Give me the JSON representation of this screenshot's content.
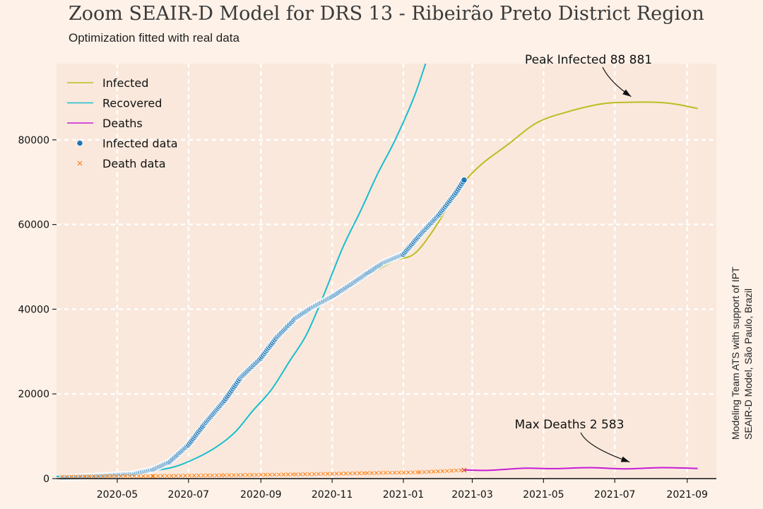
{
  "header": {
    "title": "Zoom SEAIR-D Model for DRS 13 - Ribeirão Preto District Region",
    "subtitle": "Optimization fitted with real data"
  },
  "credit": {
    "line1": "Modeling Team ATS with support of IPT",
    "line2": "SEAIR-D Model, São Paulo, Brazil"
  },
  "chart_data": {
    "type": "line",
    "title": "Zoom SEAIR-D Model for DRS 13 - Ribeirão Preto District Region",
    "subtitle": "Optimization fitted with real data",
    "xlabel": "",
    "ylabel": "",
    "xlim": [
      "2020-03-10",
      "2021-09-26"
    ],
    "ylim": [
      0,
      98000
    ],
    "grid": true,
    "legend_position": "top-left",
    "x_ticks": [
      "2020-05",
      "2020-07",
      "2020-09",
      "2020-11",
      "2021-01",
      "2021-03",
      "2021-05",
      "2021-07",
      "2021-09"
    ],
    "y_ticks": [
      0,
      20000,
      40000,
      60000,
      80000
    ],
    "series": [
      {
        "name": "Infected",
        "kind": "line",
        "color": "#bcbd22",
        "points": [
          [
            "2020-03-10",
            500
          ],
          [
            "2020-04-20",
            900
          ],
          [
            "2020-05-20",
            1800
          ],
          [
            "2020-06-10",
            3500
          ],
          [
            "2020-06-25",
            6500
          ],
          [
            "2020-07-10",
            12000
          ],
          [
            "2020-08-01",
            19000
          ],
          [
            "2020-08-25",
            27000
          ],
          [
            "2020-09-15",
            33000
          ],
          [
            "2020-10-05",
            38500
          ],
          [
            "2020-10-25",
            42000
          ],
          [
            "2020-11-15",
            45000
          ],
          [
            "2020-12-05",
            48500
          ],
          [
            "2020-12-25",
            51500
          ],
          [
            "2021-01-10",
            53000
          ],
          [
            "2021-01-25",
            58000
          ],
          [
            "2021-02-10",
            65000
          ],
          [
            "2021-02-22",
            70000
          ],
          [
            "2021-03-10",
            74500
          ],
          [
            "2021-04-01",
            79000
          ],
          [
            "2021-04-25",
            84000
          ],
          [
            "2021-05-20",
            86500
          ],
          [
            "2021-06-20",
            88500
          ],
          [
            "2021-07-15",
            88881
          ],
          [
            "2021-08-10",
            88800
          ],
          [
            "2021-08-25",
            88300
          ],
          [
            "2021-09-10",
            87400
          ]
        ]
      },
      {
        "name": "Recovered",
        "kind": "line",
        "color": "#17becf",
        "points": [
          [
            "2020-03-10",
            500
          ],
          [
            "2020-04-20",
            800
          ],
          [
            "2020-05-20",
            1600
          ],
          [
            "2020-06-15",
            2500
          ],
          [
            "2020-07-05",
            4500
          ],
          [
            "2020-07-25",
            7500
          ],
          [
            "2020-08-10",
            11000
          ],
          [
            "2020-08-25",
            16000
          ],
          [
            "2020-09-10",
            21000
          ],
          [
            "2020-09-25",
            27500
          ],
          [
            "2020-10-10",
            34000
          ],
          [
            "2020-10-25",
            43500
          ],
          [
            "2020-11-10",
            54500
          ],
          [
            "2020-11-25",
            63000
          ],
          [
            "2020-12-10",
            72000
          ],
          [
            "2020-12-25",
            80000
          ],
          [
            "2021-01-10",
            90000
          ],
          [
            "2021-01-20",
            98000
          ]
        ]
      },
      {
        "name": "Deaths",
        "kind": "line",
        "color": "#c61cd6",
        "points": [
          [
            "2021-02-22",
            2050
          ],
          [
            "2021-03-15",
            1950
          ],
          [
            "2021-04-15",
            2450
          ],
          [
            "2021-05-10",
            2350
          ],
          [
            "2021-06-10",
            2583
          ],
          [
            "2021-07-10",
            2300
          ],
          [
            "2021-08-10",
            2583
          ],
          [
            "2021-09-10",
            2400
          ]
        ]
      },
      {
        "name": "Infected data",
        "kind": "scatter",
        "marker": "circle",
        "color": "#1f77b4",
        "points": [
          [
            "2020-03-15",
            200
          ],
          [
            "2020-04-15",
            600
          ],
          [
            "2020-05-15",
            1100
          ],
          [
            "2020-06-01",
            2200
          ],
          [
            "2020-06-15",
            4000
          ],
          [
            "2020-07-01",
            8000
          ],
          [
            "2020-07-15",
            13000
          ],
          [
            "2020-08-01",
            18500
          ],
          [
            "2020-08-15",
            24000
          ],
          [
            "2020-09-01",
            28500
          ],
          [
            "2020-09-15",
            33500
          ],
          [
            "2020-10-01",
            38000
          ],
          [
            "2020-10-15",
            40500
          ],
          [
            "2020-11-01",
            43000
          ],
          [
            "2020-11-15",
            45500
          ],
          [
            "2020-12-01",
            48500
          ],
          [
            "2020-12-15",
            51000
          ],
          [
            "2021-01-01",
            53000
          ],
          [
            "2021-01-15",
            57500
          ],
          [
            "2021-02-01",
            62500
          ],
          [
            "2021-02-15",
            67500
          ],
          [
            "2021-02-22",
            70500
          ]
        ]
      },
      {
        "name": "Death data",
        "kind": "scatter",
        "marker": "x",
        "color": "#ff7f0e",
        "points": [
          [
            "2020-03-15",
            500
          ],
          [
            "2020-06-01",
            600
          ],
          [
            "2020-08-01",
            800
          ],
          [
            "2020-10-01",
            1000
          ],
          [
            "2020-12-01",
            1300
          ],
          [
            "2021-01-15",
            1500
          ],
          [
            "2021-02-22",
            2000
          ]
        ]
      }
    ],
    "annotations": [
      {
        "text": "Peak Infected 88 881",
        "point": [
          "2021-07-15",
          88881
        ]
      },
      {
        "text": "Max Deaths 2 583",
        "point": [
          "2021-07-15",
          2583
        ]
      }
    ]
  }
}
